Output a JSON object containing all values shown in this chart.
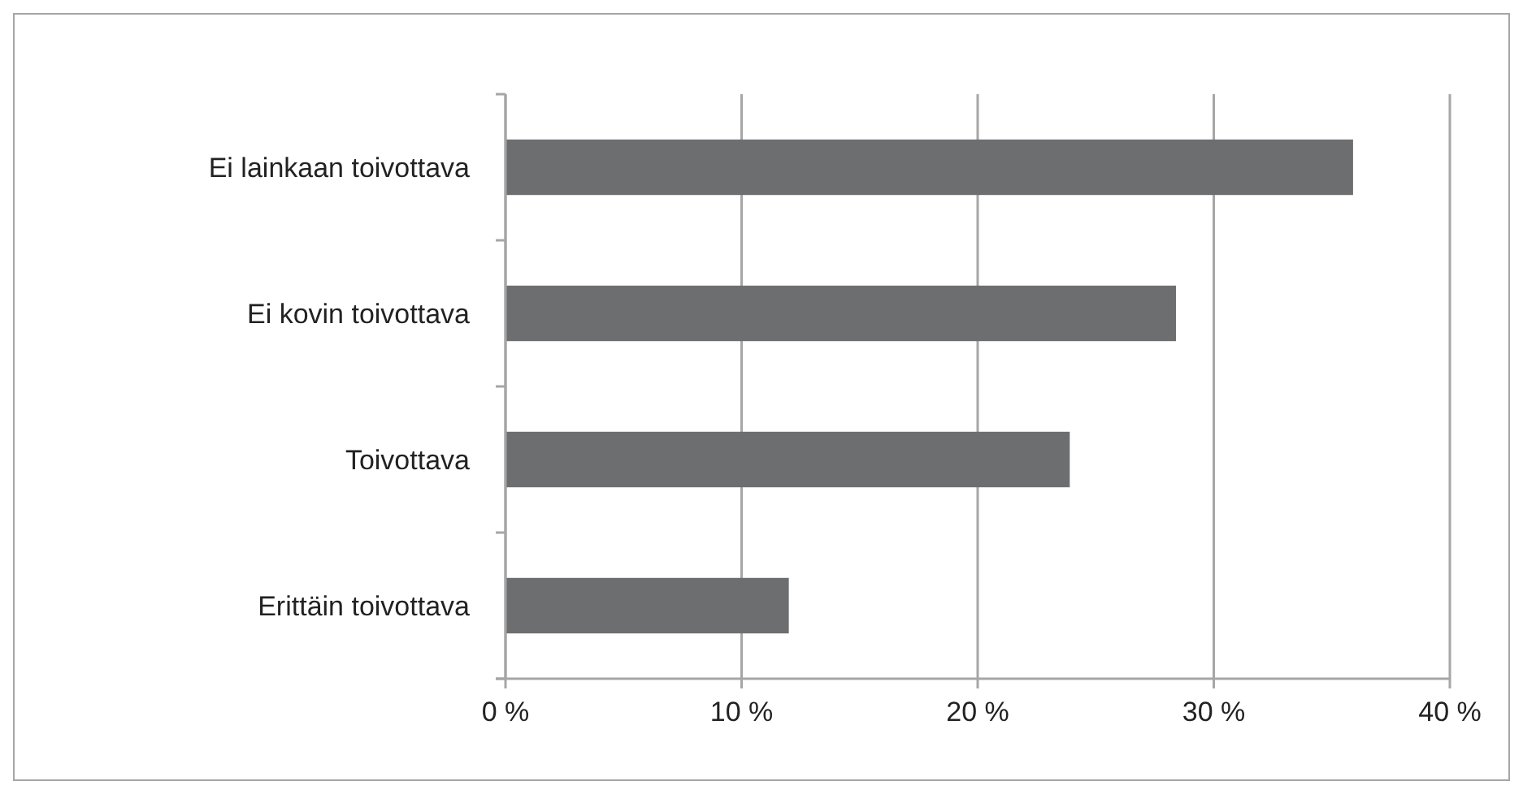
{
  "chart_data": {
    "type": "bar",
    "orientation": "horizontal",
    "categories": [
      "Ei lainkaan toivottava",
      "Ei kovin toivottava",
      "Toivottava",
      "Erittäin toivottava"
    ],
    "values": [
      35.9,
      28.4,
      23.9,
      12.0
    ],
    "color": "#6d6e70",
    "xlim": [
      0,
      40
    ],
    "xticks": [
      {
        "value": 0,
        "label": "0 %"
      },
      {
        "value": 10,
        "label": "10 %"
      },
      {
        "value": 20,
        "label": "20 %"
      },
      {
        "value": 30,
        "label": "30 %"
      },
      {
        "value": 40,
        "label": "40 %"
      }
    ],
    "grid": "x"
  }
}
